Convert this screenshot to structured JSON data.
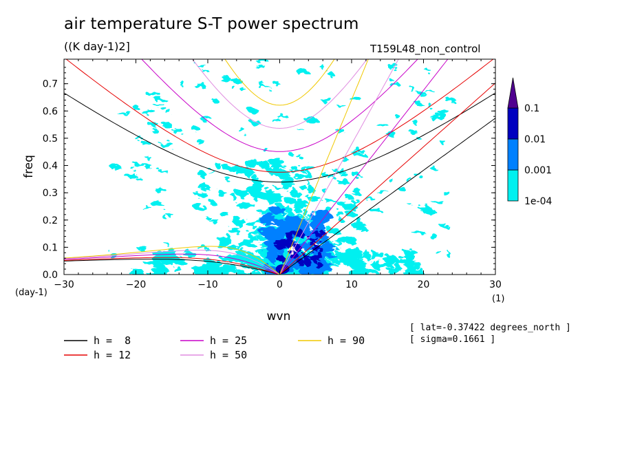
{
  "title": "air temperature S-T power spectrum",
  "units": "((K day-1)2]",
  "experiment": "T159L48_non_control",
  "meta": {
    "lat": "[ lat=-0.37422 degrees_north ]",
    "sigma": "[ sigma=0.1661 ]"
  },
  "colors": {
    "h8": "#000000",
    "h12": "#e60000",
    "h25": "#c800c8",
    "h50": "#e08ce0",
    "h90": "#f0c800",
    "level1": "#00f0f0",
    "level2": "#0080ff",
    "level3": "#0000c0",
    "level4": "#500090"
  },
  "chart_data": {
    "type": "heatmap",
    "xlabel": "wvn",
    "ylabel": "freq",
    "x_unit": "(1)",
    "y_unit": "(day-1)",
    "xlim": [
      -30,
      30
    ],
    "ylim": [
      0,
      0.79
    ],
    "x_ticks": [
      "-30",
      "-20",
      "-10",
      "0",
      "10",
      "20",
      "30"
    ],
    "y_ticks": [
      "0.0",
      "0.1",
      "0.2",
      "0.3",
      "0.4",
      "0.5",
      "0.6",
      "0.7"
    ],
    "colorbar": {
      "levels": [
        "1e-04",
        "0.001",
        "0.01",
        "0.1"
      ],
      "colors": [
        "#00f0f0",
        "#0080ff",
        "#0000c0",
        "#500090"
      ]
    },
    "dispersion_legend": [
      {
        "label": "h =  8",
        "color": "#000000"
      },
      {
        "label": "h = 25",
        "color": "#c800c8"
      },
      {
        "label": "h = 90",
        "color": "#f0c800"
      },
      {
        "label": "h = 12",
        "color": "#e60000"
      },
      {
        "label": "h = 50",
        "color": "#e08ce0"
      }
    ],
    "dispersion_curves": {
      "equivalent_depths_m": [
        8,
        12,
        25,
        50,
        90
      ],
      "types": [
        "kelvin",
        "westward inertio-gravity (n=1)",
        "equatorial Rossby (n=1)",
        "eastward inertio-gravity (n=1)"
      ]
    },
    "power_regions": [
      {
        "x": [
          -1,
          3
        ],
        "y": [
          0,
          0.06
        ],
        "level": 4
      },
      {
        "x": [
          0,
          6
        ],
        "y": [
          0.02,
          0.17
        ],
        "level": 3
      },
      {
        "x": [
          -5,
          8
        ],
        "y": [
          0,
          0.25
        ],
        "level": 2
      },
      {
        "x": [
          -25,
          25
        ],
        "y": [
          0,
          0.79
        ],
        "level": 1
      }
    ]
  }
}
